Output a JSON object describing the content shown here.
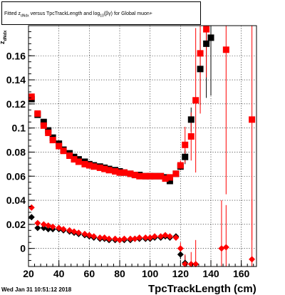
{
  "title": {
    "prefix": "Fitted  z",
    "sub1": "dNdx",
    "middle": " versus TpcTrackLength and log",
    "sub2": "10",
    "suffix": "(βγ) for Global muon+"
  },
  "y_axis_label": {
    "main": "z",
    "sub": "dNdx"
  },
  "x_axis_label": "TpcTrackLength (cm)",
  "timestamp": "Wed Jan 31 10:51:12 2018",
  "colors": {
    "series1": "#ff0000",
    "series2": "#000000"
  },
  "chart_data": {
    "type": "scatter",
    "xlim": [
      20,
      170
    ],
    "ylim": [
      -0.015,
      0.185
    ],
    "xticks": [
      20,
      40,
      60,
      80,
      100,
      120,
      140,
      160
    ],
    "yticks": [
      0,
      0.02,
      0.04,
      0.06,
      0.08,
      0.1,
      0.12,
      0.14,
      0.16
    ],
    "ytick_labels": [
      "0",
      "0.02",
      "0.04",
      "0.06",
      "0.08",
      "0.1",
      "0.12",
      "0.14",
      "0.16"
    ],
    "grid": true,
    "xlabel": "TpcTrackLength (cm)",
    "ylabel": "z_dNdx",
    "series": [
      {
        "marker": "square",
        "color": "#000000",
        "points": [
          {
            "x": 22,
            "y": 0.124
          },
          {
            "x": 26,
            "y": 0.111
          },
          {
            "x": 30,
            "y": 0.105
          },
          {
            "x": 33,
            "y": 0.098
          },
          {
            "x": 36,
            "y": 0.092
          },
          {
            "x": 40,
            "y": 0.087
          },
          {
            "x": 43,
            "y": 0.082
          },
          {
            "x": 47,
            "y": 0.079
          },
          {
            "x": 50,
            "y": 0.076
          },
          {
            "x": 53,
            "y": 0.074
          },
          {
            "x": 57,
            "y": 0.072
          },
          {
            "x": 60,
            "y": 0.07
          },
          {
            "x": 63,
            "y": 0.069
          },
          {
            "x": 67,
            "y": 0.068
          },
          {
            "x": 70,
            "y": 0.067
          },
          {
            "x": 73,
            "y": 0.066
          },
          {
            "x": 77,
            "y": 0.065
          },
          {
            "x": 80,
            "y": 0.064
          },
          {
            "x": 83,
            "y": 0.063
          },
          {
            "x": 87,
            "y": 0.062
          },
          {
            "x": 90,
            "y": 0.061
          },
          {
            "x": 93,
            "y": 0.061
          },
          {
            "x": 97,
            "y": 0.06
          },
          {
            "x": 100,
            "y": 0.06
          },
          {
            "x": 103,
            "y": 0.06
          },
          {
            "x": 107,
            "y": 0.06
          },
          {
            "x": 110,
            "y": 0.059
          },
          {
            "x": 113,
            "y": 0.056
          },
          {
            "x": 117,
            "y": 0.062
          },
          {
            "x": 120,
            "y": 0.068,
            "err": 0.003
          },
          {
            "x": 123,
            "y": 0.076,
            "err": 0.006
          },
          {
            "x": 127,
            "y": 0.107,
            "err": 0.01
          },
          {
            "x": 133,
            "y": 0.149,
            "err": 0.03
          },
          {
            "x": 137,
            "y": 0.17,
            "err": 0.045
          },
          {
            "x": 140,
            "y": 0.175,
            "err": 0.048
          }
        ]
      },
      {
        "marker": "square",
        "color": "#ff0000",
        "points": [
          {
            "x": 22,
            "y": 0.126
          },
          {
            "x": 26,
            "y": 0.112
          },
          {
            "x": 30,
            "y": 0.102
          },
          {
            "x": 33,
            "y": 0.096
          },
          {
            "x": 36,
            "y": 0.09
          },
          {
            "x": 40,
            "y": 0.085
          },
          {
            "x": 43,
            "y": 0.081
          },
          {
            "x": 47,
            "y": 0.077
          },
          {
            "x": 50,
            "y": 0.074
          },
          {
            "x": 53,
            "y": 0.072
          },
          {
            "x": 57,
            "y": 0.07
          },
          {
            "x": 60,
            "y": 0.069
          },
          {
            "x": 63,
            "y": 0.068
          },
          {
            "x": 67,
            "y": 0.067
          },
          {
            "x": 70,
            "y": 0.066
          },
          {
            "x": 73,
            "y": 0.065
          },
          {
            "x": 77,
            "y": 0.064
          },
          {
            "x": 80,
            "y": 0.063
          },
          {
            "x": 83,
            "y": 0.063
          },
          {
            "x": 87,
            "y": 0.062
          },
          {
            "x": 90,
            "y": 0.061
          },
          {
            "x": 93,
            "y": 0.06
          },
          {
            "x": 97,
            "y": 0.06
          },
          {
            "x": 100,
            "y": 0.06
          },
          {
            "x": 103,
            "y": 0.06
          },
          {
            "x": 107,
            "y": 0.06
          },
          {
            "x": 110,
            "y": 0.058
          },
          {
            "x": 113,
            "y": 0.059
          },
          {
            "x": 117,
            "y": 0.062
          },
          {
            "x": 120,
            "y": 0.069,
            "err": 0.004
          },
          {
            "x": 123,
            "y": 0.086,
            "err": 0.015
          },
          {
            "x": 127,
            "y": 0.093,
            "err": 0.02
          },
          {
            "x": 130,
            "y": 0.123,
            "err": 0.06
          },
          {
            "x": 133,
            "y": 0.162,
            "err": 0.05
          },
          {
            "x": 137,
            "y": 0.182,
            "err": 0.04
          },
          {
            "x": 150,
            "y": 0.165,
            "err": 0.12
          },
          {
            "x": 167,
            "y": 0.107,
            "err": 0.1
          }
        ]
      },
      {
        "marker": "diamond",
        "color": "#000000",
        "points": [
          {
            "x": 22,
            "y": 0.026
          },
          {
            "x": 26,
            "y": 0.017
          },
          {
            "x": 30,
            "y": 0.017
          },
          {
            "x": 33,
            "y": 0.016
          },
          {
            "x": 36,
            "y": 0.016
          },
          {
            "x": 40,
            "y": 0.016
          },
          {
            "x": 43,
            "y": 0.015
          },
          {
            "x": 47,
            "y": 0.014
          },
          {
            "x": 50,
            "y": 0.013
          },
          {
            "x": 53,
            "y": 0.012
          },
          {
            "x": 57,
            "y": 0.011
          },
          {
            "x": 60,
            "y": 0.01
          },
          {
            "x": 63,
            "y": 0.009
          },
          {
            "x": 67,
            "y": 0.008
          },
          {
            "x": 70,
            "y": 0.008
          },
          {
            "x": 73,
            "y": 0.007
          },
          {
            "x": 77,
            "y": 0.007
          },
          {
            "x": 80,
            "y": 0.007
          },
          {
            "x": 83,
            "y": 0.007
          },
          {
            "x": 87,
            "y": 0.007
          },
          {
            "x": 90,
            "y": 0.008
          },
          {
            "x": 93,
            "y": 0.008
          },
          {
            "x": 97,
            "y": 0.008
          },
          {
            "x": 100,
            "y": 0.008
          },
          {
            "x": 103,
            "y": 0.009
          },
          {
            "x": 107,
            "y": 0.009
          },
          {
            "x": 110,
            "y": 0.01
          },
          {
            "x": 113,
            "y": 0.009
          },
          {
            "x": 117,
            "y": 0.01
          },
          {
            "x": 120,
            "y": -0.005,
            "err": 0.004
          },
          {
            "x": 123,
            "y": -0.012,
            "err": 0.006
          }
        ]
      },
      {
        "marker": "diamond",
        "color": "#ff0000",
        "points": [
          {
            "x": 22,
            "y": 0.034
          },
          {
            "x": 26,
            "y": 0.021
          },
          {
            "x": 30,
            "y": 0.02
          },
          {
            "x": 33,
            "y": 0.019
          },
          {
            "x": 36,
            "y": 0.018
          },
          {
            "x": 40,
            "y": 0.017
          },
          {
            "x": 43,
            "y": 0.016
          },
          {
            "x": 47,
            "y": 0.015
          },
          {
            "x": 50,
            "y": 0.014
          },
          {
            "x": 53,
            "y": 0.013
          },
          {
            "x": 57,
            "y": 0.012
          },
          {
            "x": 60,
            "y": 0.011
          },
          {
            "x": 63,
            "y": 0.01
          },
          {
            "x": 67,
            "y": 0.009
          },
          {
            "x": 70,
            "y": 0.009
          },
          {
            "x": 73,
            "y": 0.008
          },
          {
            "x": 77,
            "y": 0.008
          },
          {
            "x": 80,
            "y": 0.007
          },
          {
            "x": 83,
            "y": 0.008
          },
          {
            "x": 87,
            "y": 0.008
          },
          {
            "x": 90,
            "y": 0.008
          },
          {
            "x": 93,
            "y": 0.009
          },
          {
            "x": 97,
            "y": 0.009
          },
          {
            "x": 100,
            "y": 0.009
          },
          {
            "x": 103,
            "y": 0.01
          },
          {
            "x": 107,
            "y": 0.01
          },
          {
            "x": 110,
            "y": 0.011
          },
          {
            "x": 113,
            "y": 0.01
          },
          {
            "x": 117,
            "y": 0.009
          },
          {
            "x": 120,
            "y": 0.0,
            "err": 0.005
          },
          {
            "x": 123,
            "y": -0.013,
            "err": 0.008
          },
          {
            "x": 127,
            "y": -0.013,
            "err": 0.01
          },
          {
            "x": 130,
            "y": -0.013,
            "err": 0.02
          },
          {
            "x": 147,
            "y": 0.0,
            "err": 0.04
          },
          {
            "x": 150,
            "y": 0.001,
            "err": 0.035
          },
          {
            "x": 167,
            "y": -0.009,
            "err": 0.05
          }
        ]
      }
    ]
  }
}
